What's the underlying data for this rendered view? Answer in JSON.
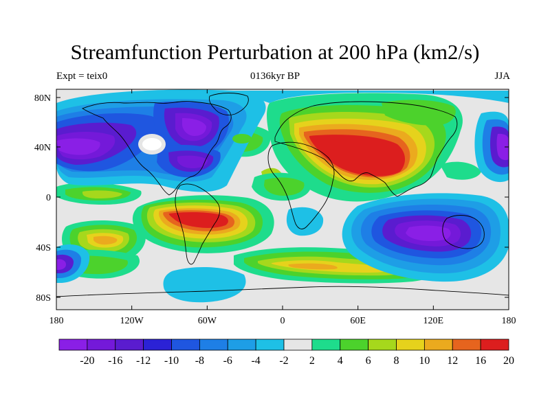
{
  "figure": {
    "title": "Streamfunction Perturbation at 200 hPa (km2/s)",
    "left_subtitle": "Expt = teix0",
    "center_subtitle": "0136kyr BP",
    "right_subtitle": "JJA"
  },
  "axes": {
    "lat_labels": [
      "80N",
      "40N",
      "0",
      "40S",
      "80S"
    ],
    "lon_labels": [
      "180",
      "120W",
      "60W",
      "0",
      "60E",
      "120E",
      "180"
    ]
  },
  "colorbar": {
    "labels": [
      "-20",
      "-16",
      "-12",
      "-10",
      "-8",
      "-6",
      "-4",
      "-2",
      "2",
      "4",
      "6",
      "8",
      "10",
      "12",
      "16",
      "20"
    ],
    "colors": [
      "#8a1fe6",
      "#7419d9",
      "#5a1ccf",
      "#2b22d6",
      "#1f56e0",
      "#1e7fe6",
      "#1e9ee6",
      "#1ec0e6",
      "#e6e6e6",
      "#1edc8c",
      "#4cd22c",
      "#a6d81c",
      "#e6d21c",
      "#ebaa1e",
      "#e6641e",
      "#dc1e1e"
    ]
  },
  "colors": {
    "land_outline": "#000000",
    "background": "#e6e6e6"
  }
}
